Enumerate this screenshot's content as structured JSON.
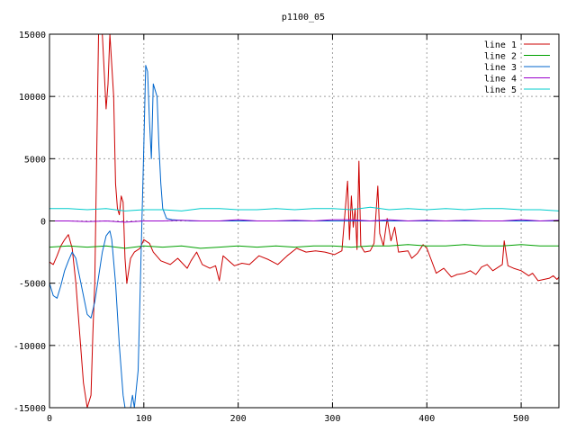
{
  "chart_data": {
    "type": "line",
    "title": "p1100_05",
    "xlabel": "",
    "ylabel": "",
    "xlim": [
      0,
      540
    ],
    "ylim": [
      -15000,
      15000
    ],
    "x_ticks": [
      0,
      100,
      200,
      300,
      400,
      500
    ],
    "y_ticks": [
      -15000,
      -10000,
      -5000,
      0,
      5000,
      10000,
      15000
    ],
    "grid": true,
    "legend_position": "top-right",
    "series": [
      {
        "name": "line 1",
        "color": "#cc0000",
        "points": [
          [
            0,
            -3300
          ],
          [
            4,
            -3500
          ],
          [
            8,
            -2800
          ],
          [
            12,
            -2000
          ],
          [
            16,
            -1500
          ],
          [
            20,
            -1100
          ],
          [
            24,
            -2200
          ],
          [
            28,
            -5000
          ],
          [
            32,
            -9000
          ],
          [
            36,
            -13000
          ],
          [
            40,
            -15000
          ],
          [
            44,
            -14000
          ],
          [
            46,
            -9000
          ],
          [
            48,
            -5000
          ],
          [
            50,
            5000
          ],
          [
            52,
            15000
          ],
          [
            56,
            15000
          ],
          [
            58,
            12000
          ],
          [
            60,
            9000
          ],
          [
            62,
            11000
          ],
          [
            64,
            15000
          ],
          [
            68,
            10000
          ],
          [
            70,
            3000
          ],
          [
            72,
            1000
          ],
          [
            74,
            500
          ],
          [
            76,
            2000
          ],
          [
            78,
            1500
          ],
          [
            80,
            -3000
          ],
          [
            82,
            -5000
          ],
          [
            86,
            -3000
          ],
          [
            90,
            -2500
          ],
          [
            96,
            -2200
          ],
          [
            100,
            -1500
          ],
          [
            106,
            -1800
          ],
          [
            110,
            -2500
          ],
          [
            118,
            -3200
          ],
          [
            128,
            -3500
          ],
          [
            136,
            -3000
          ],
          [
            146,
            -3800
          ],
          [
            150,
            -3200
          ],
          [
            156,
            -2500
          ],
          [
            162,
            -3500
          ],
          [
            170,
            -3800
          ],
          [
            176,
            -3600
          ],
          [
            180,
            -4800
          ],
          [
            184,
            -2800
          ],
          [
            190,
            -3200
          ],
          [
            196,
            -3600
          ],
          [
            204,
            -3400
          ],
          [
            212,
            -3500
          ],
          [
            222,
            -2800
          ],
          [
            232,
            -3100
          ],
          [
            242,
            -3500
          ],
          [
            252,
            -2800
          ],
          [
            262,
            -2200
          ],
          [
            272,
            -2500
          ],
          [
            282,
            -2400
          ],
          [
            292,
            -2500
          ],
          [
            302,
            -2700
          ],
          [
            310,
            -2400
          ],
          [
            316,
            3200
          ],
          [
            318,
            -1500
          ],
          [
            320,
            2000
          ],
          [
            322,
            -500
          ],
          [
            324,
            1000
          ],
          [
            326,
            -2300
          ],
          [
            328,
            4800
          ],
          [
            330,
            -2000
          ],
          [
            334,
            -2500
          ],
          [
            340,
            -2400
          ],
          [
            344,
            -1800
          ],
          [
            348,
            2800
          ],
          [
            350,
            -1000
          ],
          [
            354,
            -2000
          ],
          [
            358,
            200
          ],
          [
            362,
            -1600
          ],
          [
            366,
            -500
          ],
          [
            370,
            -2500
          ],
          [
            380,
            -2400
          ],
          [
            384,
            -3000
          ],
          [
            390,
            -2600
          ],
          [
            396,
            -1900
          ],
          [
            400,
            -2200
          ],
          [
            404,
            -3000
          ],
          [
            410,
            -4200
          ],
          [
            418,
            -3800
          ],
          [
            426,
            -4500
          ],
          [
            432,
            -4300
          ],
          [
            440,
            -4200
          ],
          [
            446,
            -4000
          ],
          [
            452,
            -4300
          ],
          [
            458,
            -3700
          ],
          [
            464,
            -3500
          ],
          [
            470,
            -4000
          ],
          [
            476,
            -3700
          ],
          [
            480,
            -3500
          ],
          [
            482,
            -1600
          ],
          [
            486,
            -3600
          ],
          [
            492,
            -3800
          ],
          [
            500,
            -4000
          ],
          [
            508,
            -4400
          ],
          [
            512,
            -4200
          ],
          [
            518,
            -4800
          ],
          [
            524,
            -4700
          ],
          [
            530,
            -4600
          ],
          [
            534,
            -4400
          ],
          [
            538,
            -4700
          ],
          [
            540,
            -4500
          ]
        ]
      },
      {
        "name": "line 2",
        "color": "#00a000",
        "points": [
          [
            0,
            -2100
          ],
          [
            20,
            -2000
          ],
          [
            40,
            -2100
          ],
          [
            60,
            -2000
          ],
          [
            80,
            -2200
          ],
          [
            100,
            -2000
          ],
          [
            120,
            -2100
          ],
          [
            140,
            -2000
          ],
          [
            160,
            -2200
          ],
          [
            180,
            -2100
          ],
          [
            200,
            -2000
          ],
          [
            220,
            -2100
          ],
          [
            240,
            -2000
          ],
          [
            260,
            -2100
          ],
          [
            280,
            -2000
          ],
          [
            300,
            -2000
          ],
          [
            320,
            -2100
          ],
          [
            340,
            -2000
          ],
          [
            360,
            -2000
          ],
          [
            380,
            -1900
          ],
          [
            400,
            -2000
          ],
          [
            420,
            -2000
          ],
          [
            440,
            -1900
          ],
          [
            460,
            -2000
          ],
          [
            480,
            -2000
          ],
          [
            500,
            -1900
          ],
          [
            520,
            -2000
          ],
          [
            540,
            -2000
          ]
        ]
      },
      {
        "name": "line 3",
        "color": "#0066cc",
        "points": [
          [
            0,
            -5000
          ],
          [
            4,
            -6000
          ],
          [
            8,
            -6200
          ],
          [
            12,
            -5200
          ],
          [
            16,
            -4000
          ],
          [
            20,
            -3200
          ],
          [
            24,
            -2500
          ],
          [
            28,
            -3000
          ],
          [
            32,
            -4500
          ],
          [
            36,
            -6000
          ],
          [
            40,
            -7500
          ],
          [
            44,
            -7800
          ],
          [
            48,
            -6500
          ],
          [
            52,
            -4500
          ],
          [
            56,
            -2500
          ],
          [
            60,
            -1200
          ],
          [
            64,
            -800
          ],
          [
            66,
            -1500
          ],
          [
            70,
            -5000
          ],
          [
            74,
            -10000
          ],
          [
            76,
            -12000
          ],
          [
            78,
            -14000
          ],
          [
            80,
            -15000
          ],
          [
            86,
            -15000
          ],
          [
            88,
            -14000
          ],
          [
            90,
            -15000
          ],
          [
            94,
            -12000
          ],
          [
            96,
            -6000
          ],
          [
            98,
            0
          ],
          [
            100,
            6000
          ],
          [
            102,
            12500
          ],
          [
            104,
            12000
          ],
          [
            106,
            8000
          ],
          [
            108,
            5000
          ],
          [
            110,
            11000
          ],
          [
            114,
            10000
          ],
          [
            116,
            6000
          ],
          [
            118,
            3000
          ],
          [
            120,
            1000
          ],
          [
            124,
            200
          ],
          [
            130,
            100
          ],
          [
            150,
            0
          ],
          [
            200,
            0
          ],
          [
            250,
            0
          ],
          [
            300,
            0
          ],
          [
            350,
            0
          ],
          [
            400,
            0
          ],
          [
            450,
            0
          ],
          [
            500,
            0
          ],
          [
            540,
            0
          ]
        ]
      },
      {
        "name": "line 4",
        "color": "#9900cc",
        "points": [
          [
            0,
            0
          ],
          [
            20,
            0
          ],
          [
            40,
            -50
          ],
          [
            60,
            0
          ],
          [
            80,
            -100
          ],
          [
            100,
            0
          ],
          [
            120,
            0
          ],
          [
            140,
            50
          ],
          [
            160,
            0
          ],
          [
            180,
            0
          ],
          [
            200,
            100
          ],
          [
            220,
            0
          ],
          [
            240,
            0
          ],
          [
            260,
            50
          ],
          [
            280,
            0
          ],
          [
            300,
            100
          ],
          [
            320,
            100
          ],
          [
            340,
            0
          ],
          [
            360,
            100
          ],
          [
            380,
            0
          ],
          [
            400,
            50
          ],
          [
            420,
            0
          ],
          [
            440,
            50
          ],
          [
            460,
            0
          ],
          [
            480,
            0
          ],
          [
            500,
            100
          ],
          [
            520,
            0
          ],
          [
            540,
            50
          ]
        ]
      },
      {
        "name": "line 5",
        "color": "#00cccc",
        "points": [
          [
            0,
            1000
          ],
          [
            20,
            1000
          ],
          [
            40,
            900
          ],
          [
            60,
            1000
          ],
          [
            80,
            800
          ],
          [
            100,
            900
          ],
          [
            120,
            900
          ],
          [
            140,
            800
          ],
          [
            160,
            1000
          ],
          [
            180,
            1000
          ],
          [
            200,
            900
          ],
          [
            220,
            900
          ],
          [
            240,
            1000
          ],
          [
            260,
            900
          ],
          [
            280,
            1000
          ],
          [
            300,
            1000
          ],
          [
            320,
            900
          ],
          [
            340,
            1100
          ],
          [
            360,
            900
          ],
          [
            380,
            1000
          ],
          [
            400,
            900
          ],
          [
            420,
            1000
          ],
          [
            440,
            900
          ],
          [
            460,
            1000
          ],
          [
            480,
            1000
          ],
          [
            500,
            900
          ],
          [
            520,
            900
          ],
          [
            540,
            800
          ]
        ]
      }
    ]
  }
}
